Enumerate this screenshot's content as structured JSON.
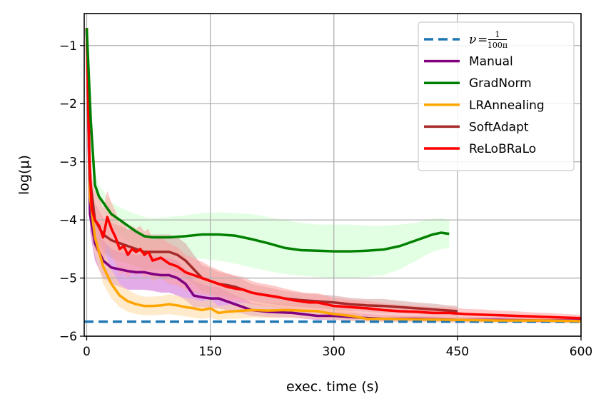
{
  "chart_data": {
    "type": "line",
    "xlabel": "exec. time (s)",
    "ylabel": "log(μ)",
    "xlim": [
      -3,
      600
    ],
    "ylim": [
      -6.0,
      -0.45
    ],
    "xticks": [
      0,
      150,
      300,
      450,
      600
    ],
    "yticks": [
      -6,
      -5,
      -4,
      -3,
      -2,
      -1
    ],
    "ytick_labels": [
      "−6",
      "−5",
      "−4",
      "−3",
      "−2",
      "−1"
    ],
    "grid": true,
    "legend_position": "top-right",
    "reference": {
      "name_parts": {
        "nu": "ν",
        "eq": "=",
        "num": "1",
        "den": "100π"
      },
      "y": -5.75,
      "color": "#1f77b4",
      "style": "dashed"
    },
    "series": [
      {
        "name": "Manual",
        "color": "#800080",
        "band_color": "#cc66d6",
        "x": [
          0,
          4,
          10,
          20,
          30,
          40,
          50,
          60,
          70,
          80,
          90,
          100,
          110,
          120,
          130,
          140,
          150,
          160,
          180,
          200,
          220,
          250,
          280,
          300,
          330,
          360,
          400,
          450,
          500,
          550,
          600
        ],
        "y": [
          -0.7,
          -3.9,
          -4.4,
          -4.7,
          -4.82,
          -4.85,
          -4.88,
          -4.9,
          -4.9,
          -4.93,
          -4.95,
          -4.95,
          -5.0,
          -5.1,
          -5.3,
          -5.33,
          -5.35,
          -5.35,
          -5.45,
          -5.55,
          -5.58,
          -5.6,
          -5.65,
          -5.65,
          -5.68,
          -5.7,
          -5.7,
          -5.72,
          -5.72,
          -5.73,
          -5.73
        ],
        "band_lower": [
          -0.9,
          -4.2,
          -4.7,
          -5.0,
          -5.1,
          -5.15,
          -5.2,
          -5.2,
          -5.2,
          -5.22,
          -5.25,
          -5.25,
          -5.3,
          -5.38,
          -5.5,
          -5.5,
          -5.52,
          -5.52,
          -5.58,
          -5.65,
          -5.67,
          -5.68,
          -5.72,
          -5.72,
          -5.74,
          -5.75,
          -5.75,
          -5.76,
          -5.76,
          -5.77,
          -5.77
        ],
        "band_upper": [
          -0.5,
          -3.5,
          -4.0,
          -4.35,
          -4.5,
          -4.55,
          -4.57,
          -4.6,
          -4.6,
          -4.62,
          -4.65,
          -4.65,
          -4.7,
          -4.85,
          -5.05,
          -5.1,
          -5.15,
          -5.15,
          -5.3,
          -5.42,
          -5.48,
          -5.52,
          -5.57,
          -5.58,
          -5.61,
          -5.64,
          -5.65,
          -5.67,
          -5.67,
          -5.68,
          -5.68
        ]
      },
      {
        "name": "GradNorm",
        "color": "#008000",
        "band_color": "#ccffcc",
        "x": [
          0,
          5,
          10,
          15,
          20,
          25,
          30,
          40,
          50,
          60,
          70,
          80,
          90,
          100,
          120,
          140,
          160,
          180,
          200,
          220,
          240,
          260,
          280,
          300,
          320,
          340,
          360,
          380,
          400,
          410,
          420,
          430,
          440
        ],
        "y": [
          -0.7,
          -2.3,
          -3.4,
          -3.6,
          -3.7,
          -3.8,
          -3.9,
          -4.0,
          -4.1,
          -4.2,
          -4.28,
          -4.3,
          -4.3,
          -4.3,
          -4.28,
          -4.25,
          -4.25,
          -4.27,
          -4.33,
          -4.4,
          -4.48,
          -4.52,
          -4.53,
          -4.54,
          -4.54,
          -4.53,
          -4.51,
          -4.45,
          -4.35,
          -4.3,
          -4.25,
          -4.22,
          -4.24
        ],
        "band_lower": [
          -0.8,
          -2.6,
          -3.6,
          -3.8,
          -3.9,
          -4.0,
          -4.1,
          -4.25,
          -4.38,
          -4.5,
          -4.58,
          -4.62,
          -4.64,
          -4.65,
          -4.66,
          -4.67,
          -4.7,
          -4.75,
          -4.82,
          -4.88,
          -4.93,
          -4.96,
          -4.98,
          -5.0,
          -5.0,
          -4.98,
          -4.95,
          -4.85,
          -4.7,
          -4.62,
          -4.55,
          -4.5,
          -4.48
        ],
        "band_upper": [
          -0.6,
          -2.0,
          -3.2,
          -3.4,
          -3.5,
          -3.6,
          -3.7,
          -3.78,
          -3.85,
          -3.9,
          -3.95,
          -3.97,
          -3.96,
          -3.95,
          -3.92,
          -3.88,
          -3.87,
          -3.88,
          -3.9,
          -3.95,
          -4.0,
          -4.05,
          -4.08,
          -4.08,
          -4.08,
          -4.1,
          -4.1,
          -4.08,
          -4.05,
          -4.0,
          -3.98,
          -3.97,
          -4.0
        ]
      },
      {
        "name": "LRAnnealing",
        "color": "#ffa500",
        "band_color": "#ffd9a0",
        "x": [
          0,
          4,
          10,
          20,
          30,
          40,
          50,
          60,
          70,
          80,
          90,
          100,
          110,
          120,
          130,
          140,
          150,
          160,
          170,
          180,
          200,
          220,
          240,
          260,
          280,
          300,
          320,
          340,
          360,
          400,
          450,
          500,
          550,
          600
        ],
        "y": [
          -0.7,
          -3.6,
          -4.3,
          -4.8,
          -5.1,
          -5.3,
          -5.4,
          -5.45,
          -5.48,
          -5.48,
          -5.47,
          -5.45,
          -5.47,
          -5.5,
          -5.52,
          -5.55,
          -5.52,
          -5.6,
          -5.58,
          -5.57,
          -5.55,
          -5.56,
          -5.55,
          -5.56,
          -5.57,
          -5.62,
          -5.65,
          -5.7,
          -5.7,
          -5.71,
          -5.72,
          -5.73,
          -5.73,
          -5.74
        ],
        "band_lower": [
          -0.9,
          -4.0,
          -4.6,
          -5.1,
          -5.35,
          -5.5,
          -5.58,
          -5.62,
          -5.64,
          -5.64,
          -5.63,
          -5.62,
          -5.64,
          -5.66,
          -5.68,
          -5.7,
          -5.68,
          -5.72,
          -5.7,
          -5.7,
          -5.68,
          -5.69,
          -5.68,
          -5.69,
          -5.7,
          -5.72,
          -5.74,
          -5.76,
          -5.76,
          -5.76,
          -5.77,
          -5.77,
          -5.77,
          -5.78
        ],
        "band_upper": [
          -0.5,
          -3.2,
          -4.0,
          -4.5,
          -4.85,
          -5.1,
          -5.2,
          -5.28,
          -5.32,
          -5.32,
          -5.31,
          -5.28,
          -5.3,
          -5.34,
          -5.36,
          -5.4,
          -5.36,
          -5.48,
          -5.46,
          -5.44,
          -5.42,
          -5.43,
          -5.42,
          -5.43,
          -5.44,
          -5.52,
          -5.56,
          -5.64,
          -5.64,
          -5.66,
          -5.67,
          -5.69,
          -5.69,
          -5.7
        ]
      },
      {
        "name": "SoftAdapt",
        "color": "#a52a2a",
        "band_color": "#d4a0a0",
        "x": [
          0,
          4,
          10,
          20,
          30,
          40,
          50,
          60,
          70,
          80,
          90,
          100,
          110,
          120,
          130,
          140,
          150,
          160,
          170,
          180,
          200,
          220,
          240,
          260,
          280,
          300,
          320,
          340,
          360,
          380,
          400,
          420,
          440,
          450
        ],
        "y": [
          -0.7,
          -3.3,
          -4.0,
          -4.25,
          -4.35,
          -4.4,
          -4.45,
          -4.5,
          -4.55,
          -4.55,
          -4.55,
          -4.55,
          -4.6,
          -4.7,
          -4.85,
          -5.0,
          -5.05,
          -5.1,
          -5.12,
          -5.15,
          -5.25,
          -5.3,
          -5.35,
          -5.38,
          -5.4,
          -5.42,
          -5.45,
          -5.47,
          -5.48,
          -5.5,
          -5.52,
          -5.54,
          -5.56,
          -5.57
        ],
        "band_lower": [
          -0.9,
          -3.7,
          -4.3,
          -4.55,
          -4.65,
          -4.7,
          -4.75,
          -4.8,
          -4.85,
          -4.85,
          -4.85,
          -4.85,
          -4.9,
          -5.0,
          -5.1,
          -5.22,
          -5.27,
          -5.3,
          -5.32,
          -5.34,
          -5.4,
          -5.44,
          -5.48,
          -5.5,
          -5.52,
          -5.54,
          -5.56,
          -5.58,
          -5.6,
          -5.61,
          -5.62,
          -5.64,
          -5.65,
          -5.66
        ],
        "band_upper": [
          -0.5,
          -2.9,
          -3.7,
          -3.95,
          -4.05,
          -4.1,
          -4.15,
          -4.2,
          -4.25,
          -4.25,
          -4.25,
          -4.25,
          -4.3,
          -4.4,
          -4.6,
          -4.78,
          -4.83,
          -4.9,
          -4.92,
          -4.96,
          -5.1,
          -5.16,
          -5.22,
          -5.26,
          -5.28,
          -5.3,
          -5.34,
          -5.36,
          -5.36,
          -5.39,
          -5.42,
          -5.44,
          -5.47,
          -5.48
        ]
      },
      {
        "name": "ReLoBRaLo",
        "color": "#ff0000",
        "band_color": "#ff9e9e",
        "x": [
          0,
          3,
          6,
          10,
          15,
          20,
          25,
          30,
          35,
          40,
          45,
          50,
          55,
          60,
          65,
          70,
          75,
          80,
          90,
          100,
          110,
          120,
          130,
          140,
          150,
          160,
          170,
          180,
          190,
          200,
          210,
          220,
          230,
          240,
          250,
          260,
          270,
          280,
          290,
          300,
          320,
          340,
          360,
          380,
          400,
          420,
          440,
          460,
          480,
          500,
          520,
          540,
          560,
          580,
          600
        ],
        "y": [
          -0.7,
          -2.8,
          -3.8,
          -4.0,
          -4.1,
          -4.3,
          -3.95,
          -4.15,
          -4.3,
          -4.5,
          -4.45,
          -4.6,
          -4.5,
          -4.55,
          -4.5,
          -4.6,
          -4.55,
          -4.7,
          -4.65,
          -4.75,
          -4.8,
          -4.9,
          -4.95,
          -5.0,
          -5.05,
          -5.1,
          -5.15,
          -5.18,
          -5.2,
          -5.25,
          -5.28,
          -5.3,
          -5.32,
          -5.35,
          -5.38,
          -5.4,
          -5.42,
          -5.42,
          -5.45,
          -5.48,
          -5.5,
          -5.52,
          -5.55,
          -5.57,
          -5.58,
          -5.6,
          -5.6,
          -5.62,
          -5.63,
          -5.64,
          -5.65,
          -5.66,
          -5.67,
          -5.68,
          -5.69
        ],
        "band_lower": [
          -0.9,
          -3.3,
          -4.3,
          -4.5,
          -4.6,
          -4.8,
          -4.4,
          -4.6,
          -4.75,
          -4.95,
          -4.9,
          -5.0,
          -4.9,
          -4.95,
          -4.9,
          -5.0,
          -4.95,
          -5.05,
          -5.0,
          -5.1,
          -5.13,
          -5.2,
          -5.24,
          -5.28,
          -5.3,
          -5.34,
          -5.38,
          -5.4,
          -5.42,
          -5.45,
          -5.47,
          -5.49,
          -5.5,
          -5.52,
          -5.55,
          -5.56,
          -5.58,
          -5.58,
          -5.6,
          -5.62,
          -5.63,
          -5.65,
          -5.67,
          -5.68,
          -5.69,
          -5.7,
          -5.7,
          -5.71,
          -5.72,
          -5.72,
          -5.73,
          -5.73,
          -5.74,
          -5.74,
          -5.75
        ],
        "band_upper": [
          -0.5,
          -2.3,
          -3.3,
          -3.5,
          -3.6,
          -3.8,
          -3.5,
          -3.7,
          -3.85,
          -4.05,
          -4.0,
          -4.2,
          -4.1,
          -4.15,
          -4.1,
          -4.2,
          -4.15,
          -4.35,
          -4.3,
          -4.4,
          -4.47,
          -4.6,
          -4.66,
          -4.72,
          -4.8,
          -4.86,
          -4.92,
          -4.96,
          -4.98,
          -5.05,
          -5.09,
          -5.11,
          -5.14,
          -5.18,
          -5.21,
          -5.24,
          -5.26,
          -5.26,
          -5.3,
          -5.34,
          -5.37,
          -5.39,
          -5.43,
          -5.46,
          -5.47,
          -5.5,
          -5.5,
          -5.53,
          -5.54,
          -5.56,
          -5.57,
          -5.59,
          -5.6,
          -5.62,
          -5.63
        ]
      }
    ]
  }
}
